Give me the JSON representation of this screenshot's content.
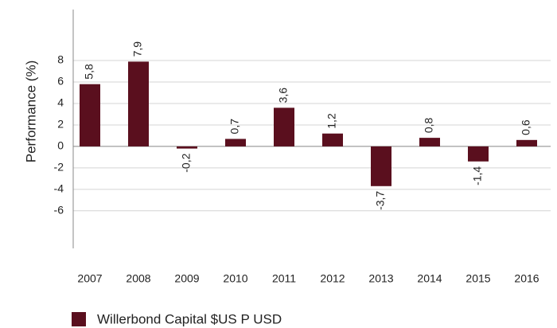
{
  "chart_data": {
    "type": "bar",
    "y_label": "Performance (%)",
    "categories": [
      "2007",
      "2008",
      "2009",
      "2010",
      "2011",
      "2012",
      "2013",
      "2014",
      "2015",
      "2016"
    ],
    "series": [
      {
        "name": "Willerbond Capital $US P  USD",
        "color": "#5a0f1e",
        "values": [
          5.8,
          7.9,
          -0.2,
          0.7,
          3.6,
          1.2,
          -3.7,
          0.8,
          -1.4,
          0.6
        ],
        "value_labels": [
          "5,8",
          "7,9",
          "-0,2",
          "0,7",
          "3,6",
          "1,2",
          "-3,7",
          "0,8",
          "-1,4",
          "0,6"
        ]
      }
    ],
    "ylim": [
      -9.5,
      12.75
    ],
    "yticks": [
      -6,
      -4,
      -2,
      0,
      2,
      4,
      6,
      8
    ],
    "grid": true,
    "legend": "bottom"
  }
}
